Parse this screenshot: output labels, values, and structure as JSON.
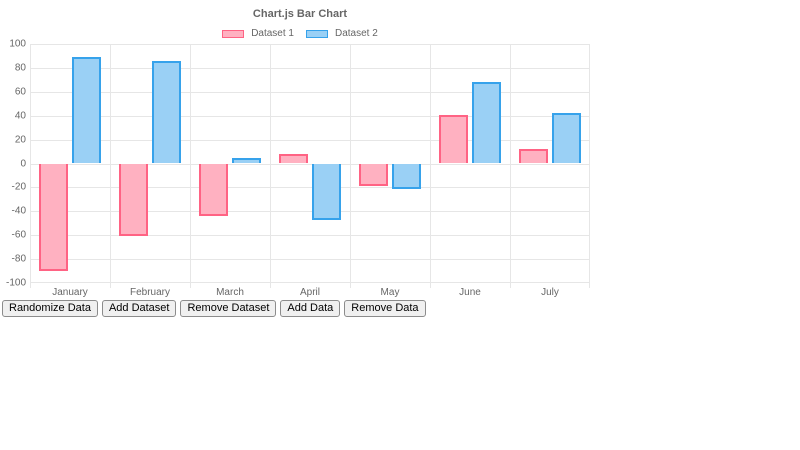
{
  "chart_data": {
    "type": "bar",
    "title": "Chart.js Bar Chart",
    "categories": [
      "January",
      "February",
      "March",
      "April",
      "May",
      "June",
      "July"
    ],
    "series": [
      {
        "name": "Dataset 1",
        "border_color": "#ff6384",
        "fill_color": "#ffb1c1",
        "values": [
          -90,
          -61,
          -44,
          8,
          -19,
          41,
          12
        ]
      },
      {
        "name": "Dataset 2",
        "border_color": "#36a2eb",
        "fill_color": "#9ad0f5",
        "values": [
          89,
          86,
          5,
          -47,
          -21,
          68,
          42
        ]
      }
    ],
    "xlabel": "",
    "ylabel": "",
    "ylim": [
      -100,
      100
    ],
    "yticks": [
      100,
      80,
      60,
      40,
      20,
      0,
      -20,
      -40,
      -60,
      -80,
      -100
    ],
    "grid": true,
    "legend_position": "top"
  },
  "toolbar": {
    "buttons": [
      "Randomize Data",
      "Add Dataset",
      "Remove Dataset",
      "Add Data",
      "Remove Data"
    ]
  },
  "colors": {
    "grid_line": "#e6e6e6",
    "tick_label": "#666666",
    "title": "#666666",
    "page_background": "#ffffff"
  }
}
